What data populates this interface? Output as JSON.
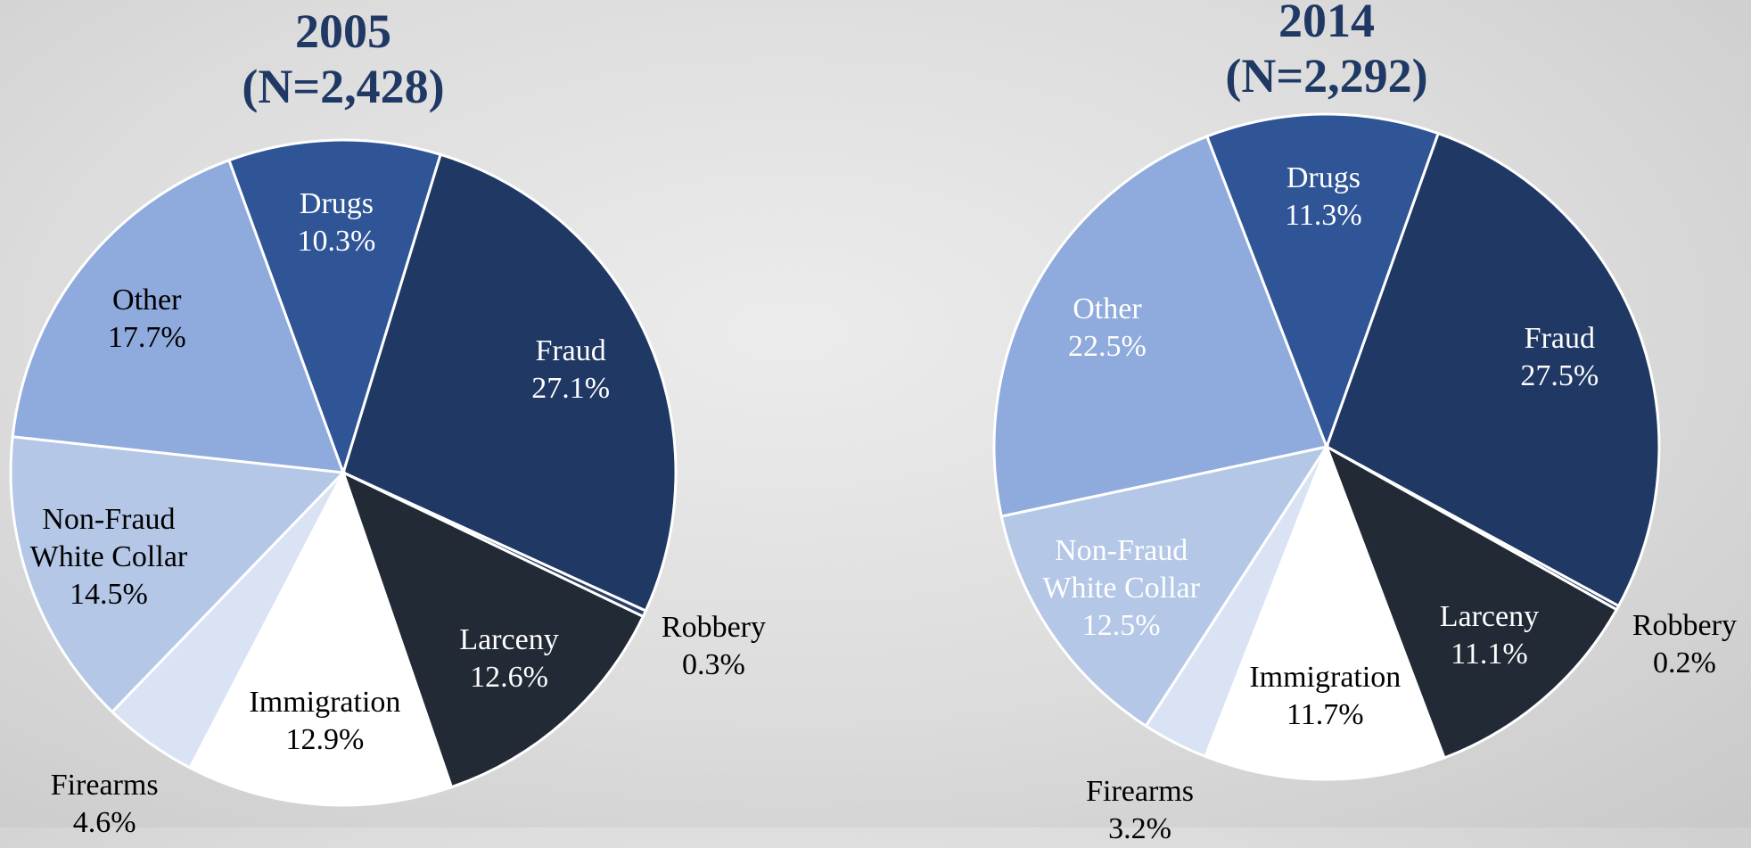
{
  "chart_data": [
    {
      "type": "pie",
      "title": "2005",
      "subtitle": "(N=2,428)",
      "categories": [
        "Fraud",
        "Robbery",
        "Larceny",
        "Immigration",
        "Firearms",
        "Non-Fraud White Collar",
        "Other",
        "Drugs"
      ],
      "values": [
        27.1,
        0.3,
        12.6,
        12.9,
        4.6,
        14.5,
        17.7,
        10.3
      ],
      "value_labels": [
        "27.1%",
        "0.3%",
        "12.6%",
        "12.9%",
        "4.6%",
        "14.5%",
        "17.7%",
        "10.3%"
      ],
      "colors": [
        "#1f3864",
        "#2b3f66",
        "#222a35",
        "#ffffff",
        "#dae3f3",
        "#b4c7e7",
        "#8faadc",
        "#2f5597"
      ],
      "label_colors": [
        "#ffffff",
        "#000000",
        "#ffffff",
        "#000000",
        "#000000",
        "#000000",
        "#000000",
        "#ffffff"
      ]
    },
    {
      "type": "pie",
      "title": "2014",
      "subtitle": "(N=2,292)",
      "categories": [
        "Fraud",
        "Robbery",
        "Larceny",
        "Immigration",
        "Firearms",
        "Non-Fraud White Collar",
        "Other",
        "Drugs"
      ],
      "values": [
        27.5,
        0.2,
        11.1,
        11.7,
        3.2,
        12.5,
        22.5,
        11.3
      ],
      "value_labels": [
        "27.5%",
        "0.2%",
        "11.1%",
        "11.7%",
        "3.2%",
        "12.5%",
        "22.5%",
        "11.3%"
      ],
      "colors": [
        "#1f3864",
        "#2b3f66",
        "#222a35",
        "#ffffff",
        "#dae3f3",
        "#b4c7e7",
        "#8faadc",
        "#2f5597"
      ],
      "label_colors": [
        "#ffffff",
        "#000000",
        "#ffffff",
        "#000000",
        "#000000",
        "#ffffff",
        "#ffffff",
        "#ffffff"
      ]
    }
  ]
}
